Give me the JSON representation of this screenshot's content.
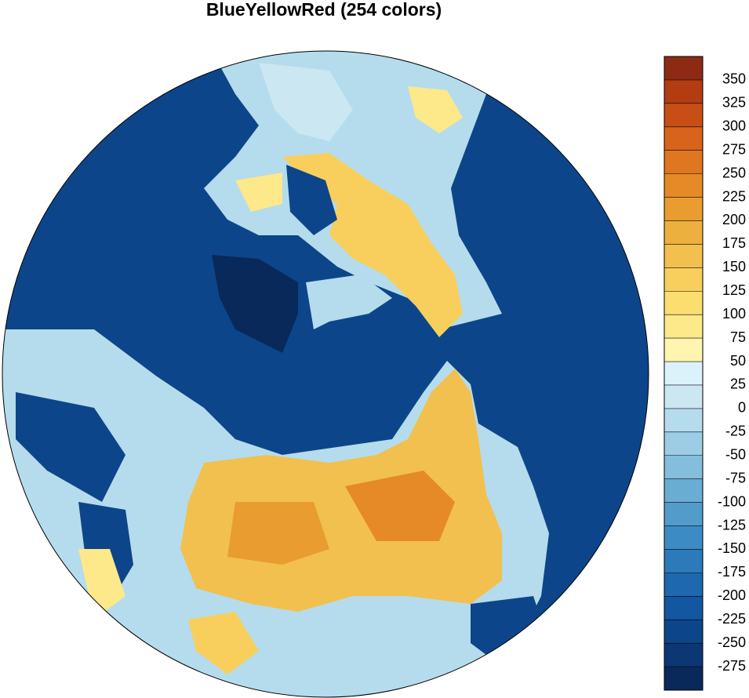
{
  "title": "BlueYellowRed (254 colors)",
  "colorbar": {
    "levels": [
      -275,
      -250,
      -225,
      -200,
      -175,
      -150,
      -125,
      -100,
      -75,
      -50,
      -25,
      0,
      25,
      50,
      75,
      100,
      125,
      150,
      175,
      200,
      225,
      250,
      275,
      300,
      325,
      350
    ],
    "colors": [
      "#08295a",
      "#0b3774",
      "#0d458a",
      "#1257a0",
      "#1d68ae",
      "#2c7aba",
      "#3d8bc4",
      "#529ccc",
      "#69add5",
      "#83bedd",
      "#9dcde4",
      "#b5dcec",
      "#cae7f2",
      "#dcf2fb",
      "#fff5b0",
      "#fde88a",
      "#fcdd70",
      "#f8cf5c",
      "#f2c04e",
      "#edaf3e",
      "#e99c30",
      "#e58a27",
      "#df7620",
      "#d8631a",
      "#c74f15",
      "#b33c12",
      "#8e2a14"
    ]
  }
}
